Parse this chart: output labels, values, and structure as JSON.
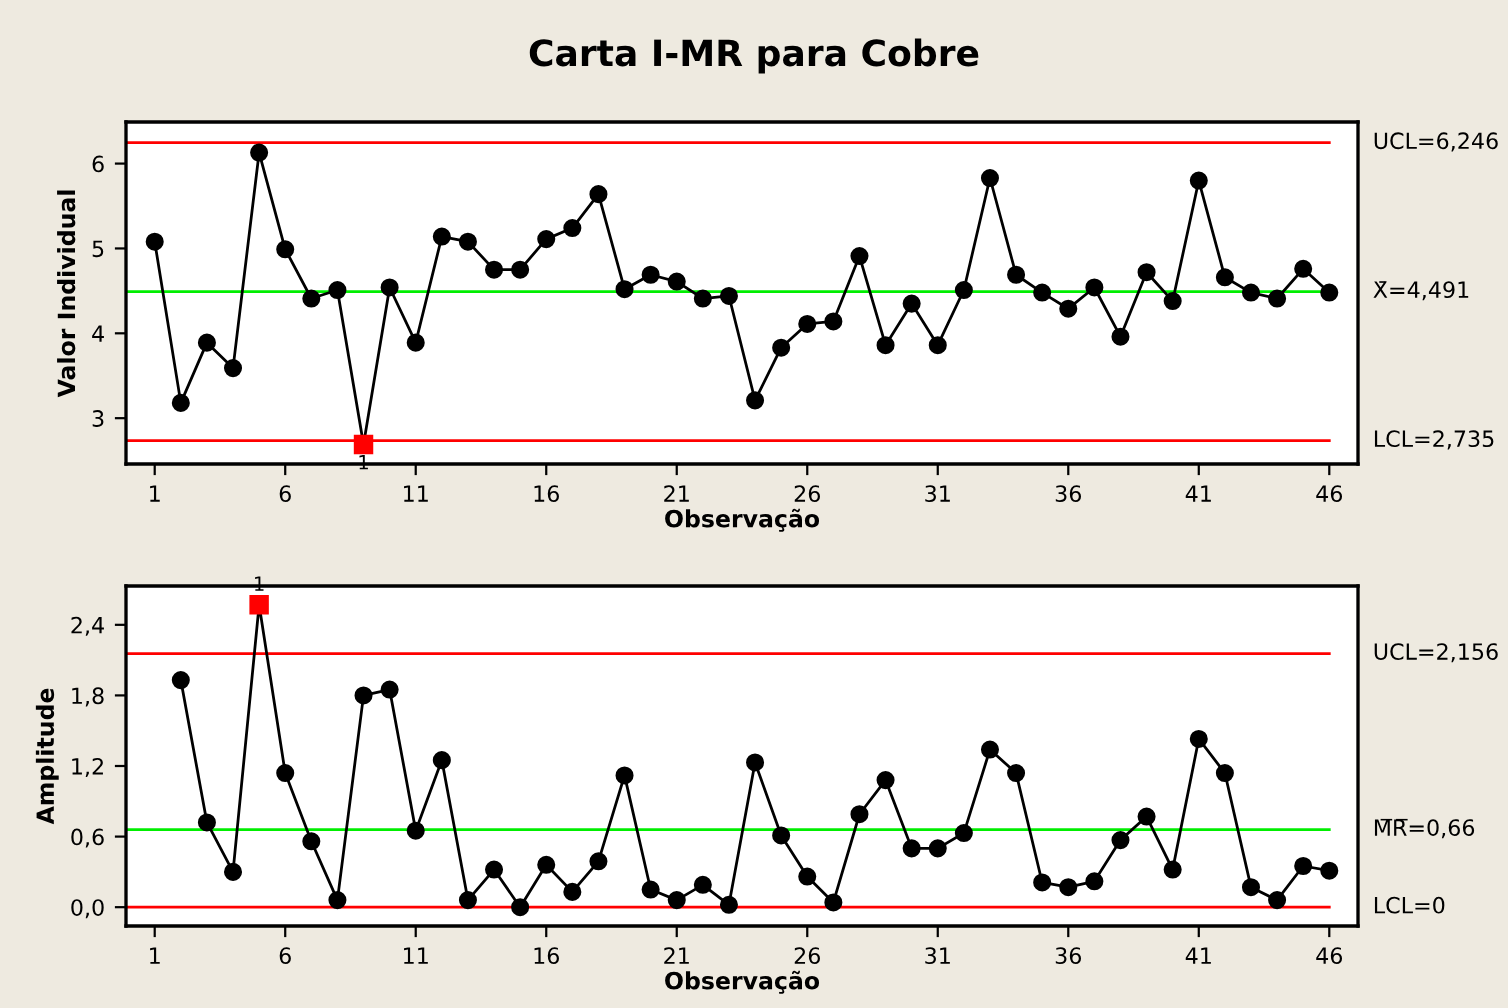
{
  "chart_data": [
    {
      "type": "line",
      "title": "Carta I-MR para Cobre",
      "xlabel": "Observação",
      "ylabel": "Valor Individual",
      "x": [
        1,
        2,
        3,
        4,
        5,
        6,
        7,
        8,
        9,
        10,
        11,
        12,
        13,
        14,
        15,
        16,
        17,
        18,
        19,
        20,
        21,
        22,
        23,
        24,
        25,
        26,
        27,
        28,
        29,
        30,
        31,
        32,
        33,
        34,
        35,
        36,
        37,
        38,
        39,
        40,
        41,
        42,
        43,
        44,
        45,
        46
      ],
      "series": [
        {
          "color": "#000000",
          "marker": "circle",
          "values": [
            5.08,
            3.18,
            3.89,
            3.59,
            6.13,
            4.99,
            4.41,
            4.51,
            2.69,
            4.54,
            3.89,
            5.14,
            5.08,
            4.75,
            4.75,
            5.11,
            5.24,
            5.64,
            4.52,
            4.69,
            4.61,
            4.41,
            4.44,
            3.21,
            3.83,
            4.11,
            4.14,
            4.91,
            3.86,
            4.35,
            3.86,
            4.51,
            5.83,
            4.69,
            4.48,
            4.29,
            4.54,
            3.96,
            4.72,
            4.38,
            5.8,
            4.66,
            4.48,
            4.41,
            4.76,
            4.48
          ]
        },
        {
          "type": "scatter",
          "color": "#ff0000",
          "marker": "square",
          "x": [
            9
          ],
          "values": [
            2.69
          ]
        }
      ],
      "annotations": [
        {
          "text": "1",
          "x": 9,
          "y": 2.69
        }
      ],
      "ref_lines": [
        {
          "axis": "y",
          "value": 6.246,
          "label": "UCL=6,246",
          "color": "#ff0000"
        },
        {
          "axis": "y",
          "value": 4.491,
          "label": "X̄=4,491",
          "color": "#00ee00"
        },
        {
          "axis": "y",
          "value": 2.735,
          "label": "LCL=2,735",
          "color": "#ff0000"
        }
      ],
      "xlim": [
        -0.1,
        47.1
      ],
      "xticks": [
        1,
        6,
        11,
        16,
        21,
        26,
        31,
        36,
        41,
        46
      ],
      "ylim": [
        2.46,
        6.49
      ],
      "yticks": [
        3,
        4,
        5,
        6
      ],
      "grid": false,
      "legend": false
    },
    {
      "type": "line",
      "xlabel": "Observação",
      "ylabel": "Amplitude",
      "x": [
        2,
        3,
        4,
        5,
        6,
        7,
        8,
        9,
        10,
        11,
        12,
        13,
        14,
        15,
        16,
        17,
        18,
        19,
        20,
        21,
        22,
        23,
        24,
        25,
        26,
        27,
        28,
        29,
        30,
        31,
        32,
        33,
        34,
        35,
        36,
        37,
        38,
        39,
        40,
        41,
        42,
        43,
        44,
        45,
        46
      ],
      "series": [
        {
          "color": "#000000",
          "marker": "circle",
          "values": [
            1.93,
            0.72,
            0.3,
            2.57,
            1.14,
            0.56,
            0.06,
            1.8,
            1.85,
            0.65,
            1.25,
            0.06,
            0.32,
            0.0,
            0.36,
            0.13,
            0.39,
            1.12,
            0.15,
            0.06,
            0.19,
            0.02,
            1.23,
            0.61,
            0.26,
            0.04,
            0.79,
            1.08,
            0.5,
            0.5,
            0.63,
            1.34,
            1.14,
            0.21,
            0.17,
            0.22,
            0.57,
            0.77,
            0.32,
            1.43,
            1.14,
            0.17,
            0.06,
            0.35,
            0.31
          ]
        },
        {
          "type": "scatter",
          "color": "#ff0000",
          "marker": "square",
          "x": [
            5
          ],
          "values": [
            2.57
          ]
        }
      ],
      "annotations": [
        {
          "text": "1",
          "x": 5,
          "y": 2.57
        }
      ],
      "ref_lines": [
        {
          "axis": "y",
          "value": 2.156,
          "label": "UCL=2,156",
          "color": "#ff0000"
        },
        {
          "axis": "y",
          "value": 0.66,
          "label": "M̅R̅=0,66",
          "color": "#00ee00"
        },
        {
          "axis": "y",
          "value": 0,
          "label": "LCL=0",
          "color": "#ff0000"
        }
      ],
      "xlim": [
        -0.1,
        47.1
      ],
      "xticks": [
        1,
        6,
        11,
        16,
        21,
        26,
        31,
        36,
        41,
        46
      ],
      "ylim": [
        -0.16,
        2.73
      ],
      "yticks": [
        {
          "value": 0,
          "label": "0,0"
        },
        {
          "value": 0.6,
          "label": "0,6"
        },
        {
          "value": 1.2,
          "label": "1,2"
        },
        {
          "value": 1.8,
          "label": "1,8"
        },
        {
          "value": 2.4,
          "label": "2,4"
        }
      ],
      "grid": false,
      "legend": false
    }
  ]
}
